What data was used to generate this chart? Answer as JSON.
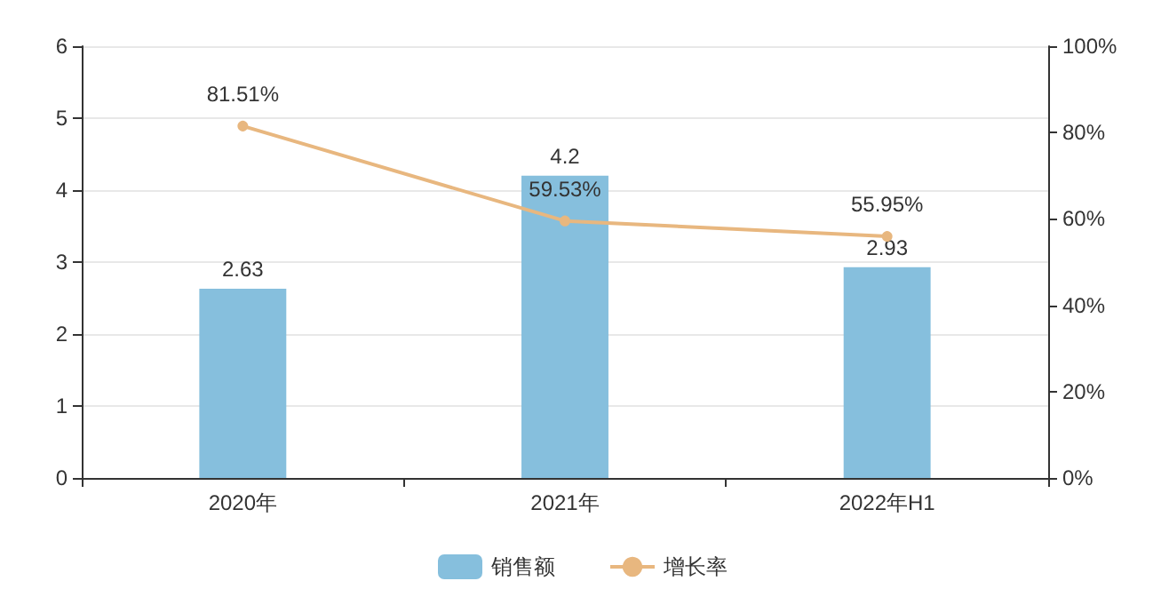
{
  "chart_data": {
    "type": "bar",
    "categories": [
      "2020年",
      "2021年",
      "2022年H1"
    ],
    "series": [
      {
        "name": "销售额",
        "color": "#86bfdd",
        "values": [
          2.63,
          4.2,
          2.93
        ]
      },
      {
        "name": "增长率",
        "type": "line",
        "axis": "y2",
        "color": "#e8b77f",
        "values": [
          81.51,
          59.53,
          55.95
        ],
        "value_labels": [
          "81.51%",
          "59.53%",
          "55.95%"
        ]
      }
    ],
    "ylim": [
      0,
      6
    ],
    "yticks": [
      0,
      1,
      2,
      3,
      4,
      5,
      6
    ],
    "y2lim": [
      0,
      100
    ],
    "y2ticks": [
      {
        "value": 0,
        "label": "0%"
      },
      {
        "value": 20,
        "label": "20%"
      },
      {
        "value": 40,
        "label": "40%"
      },
      {
        "value": 60,
        "label": "60%"
      },
      {
        "value": 80,
        "label": "80%"
      },
      {
        "value": 100,
        "label": "100%"
      }
    ],
    "data_labels": true,
    "grid": "y",
    "legend": "bottom",
    "marker": "circle"
  }
}
